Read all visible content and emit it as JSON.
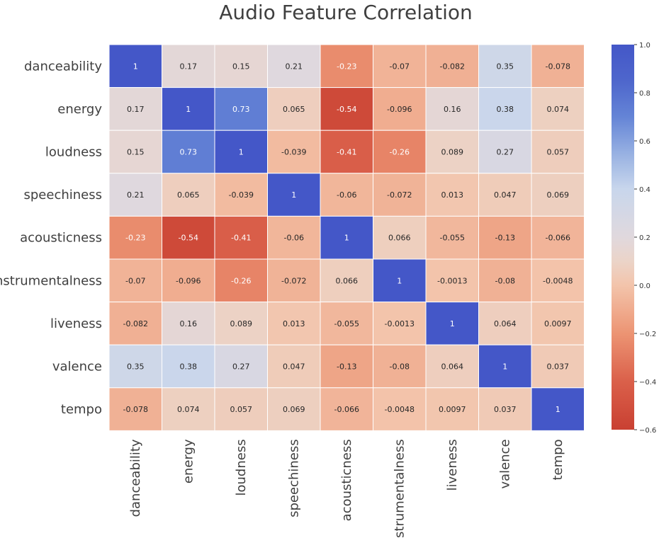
{
  "chart_data": {
    "type": "heatmap",
    "title": "Audio Feature Correlation",
    "rows": [
      "danceability",
      "energy",
      "loudness",
      "speechiness",
      "acousticness",
      "instrumentalness",
      "liveness",
      "valence",
      "tempo"
    ],
    "columns": [
      "danceability",
      "energy",
      "loudness",
      "speechiness",
      "acousticness",
      "instrumentalness",
      "liveness",
      "valence",
      "tempo"
    ],
    "values": [
      [
        1,
        0.17,
        0.15,
        0.21,
        -0.23,
        -0.07,
        -0.082,
        0.35,
        -0.078
      ],
      [
        0.17,
        1,
        0.73,
        0.065,
        -0.54,
        -0.096,
        0.16,
        0.38,
        0.074
      ],
      [
        0.15,
        0.73,
        1,
        -0.039,
        -0.41,
        -0.26,
        0.089,
        0.27,
        0.057
      ],
      [
        0.21,
        0.065,
        -0.039,
        1,
        -0.06,
        -0.072,
        0.013,
        0.047,
        0.069
      ],
      [
        -0.23,
        -0.54,
        -0.41,
        -0.06,
        1,
        0.066,
        -0.055,
        -0.13,
        -0.066
      ],
      [
        -0.07,
        -0.096,
        -0.26,
        -0.072,
        0.066,
        1,
        -0.0013,
        -0.08,
        -0.0048
      ],
      [
        -0.082,
        0.16,
        0.089,
        0.013,
        -0.055,
        -0.0013,
        1,
        0.064,
        0.0097
      ],
      [
        0.35,
        0.38,
        0.27,
        0.047,
        -0.13,
        -0.08,
        0.064,
        1,
        0.037
      ],
      [
        -0.078,
        0.074,
        0.057,
        0.069,
        -0.066,
        -0.0048,
        0.0097,
        0.037,
        1
      ]
    ],
    "colorbar": {
      "colormap": "coolwarm",
      "range": [
        -0.6,
        1.0
      ],
      "ticks": [
        "1.0",
        "0.8",
        "0.6",
        "0.4",
        "0.2",
        "0.0",
        "−0.2",
        "−0.4",
        "−0.6"
      ]
    }
  }
}
